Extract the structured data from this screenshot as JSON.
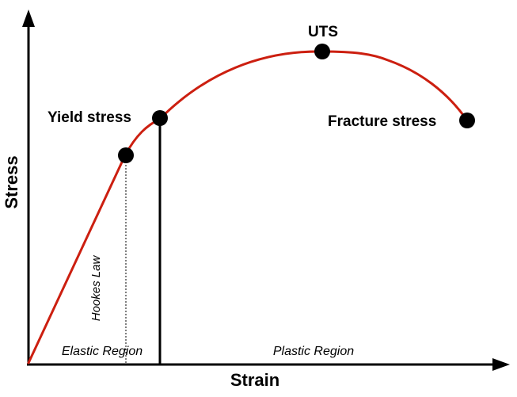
{
  "axes": {
    "x_label": "Strain",
    "y_label": "Stress"
  },
  "points": {
    "uts": "UTS",
    "yield": "Yield stress",
    "fracture": "Fracture stress"
  },
  "regions": {
    "elastic": "Elastic Region",
    "plastic": "Plastic Region"
  },
  "annotations": {
    "hookes_law": "Hookes Law"
  },
  "colors": {
    "curve": "#cc1f10",
    "axes": "#000000",
    "markers": "#000000"
  }
}
